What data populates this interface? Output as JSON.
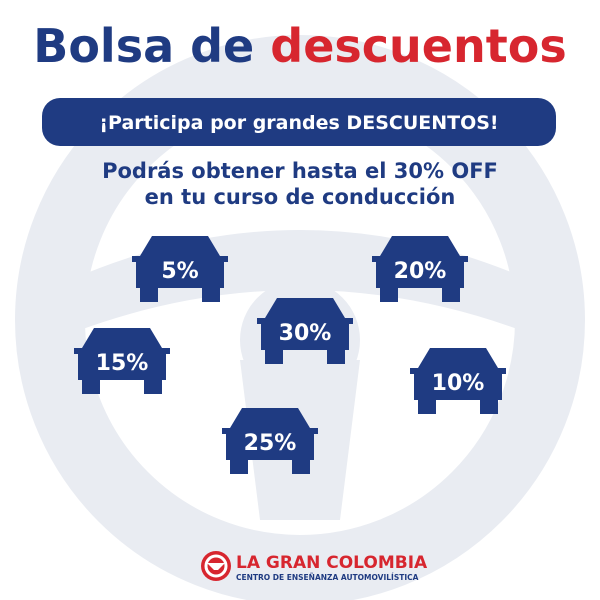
{
  "title": {
    "part1": "Bolsa de",
    "part2": "descuentos"
  },
  "banner": "¡Participa por grandes DESCUENTOS!",
  "subtitle": [
    "Podrás obtener hasta el 30% OFF",
    "en tu curso de conducción"
  ],
  "offers": [
    "5%",
    "20%",
    "30%",
    "15%",
    "10%",
    "25%"
  ],
  "logo": {
    "name": "LA GRAN COLOMBIA",
    "tagline": "CENTRO DE ENSEÑANZA AUTOMOVILÍSTICA"
  }
}
